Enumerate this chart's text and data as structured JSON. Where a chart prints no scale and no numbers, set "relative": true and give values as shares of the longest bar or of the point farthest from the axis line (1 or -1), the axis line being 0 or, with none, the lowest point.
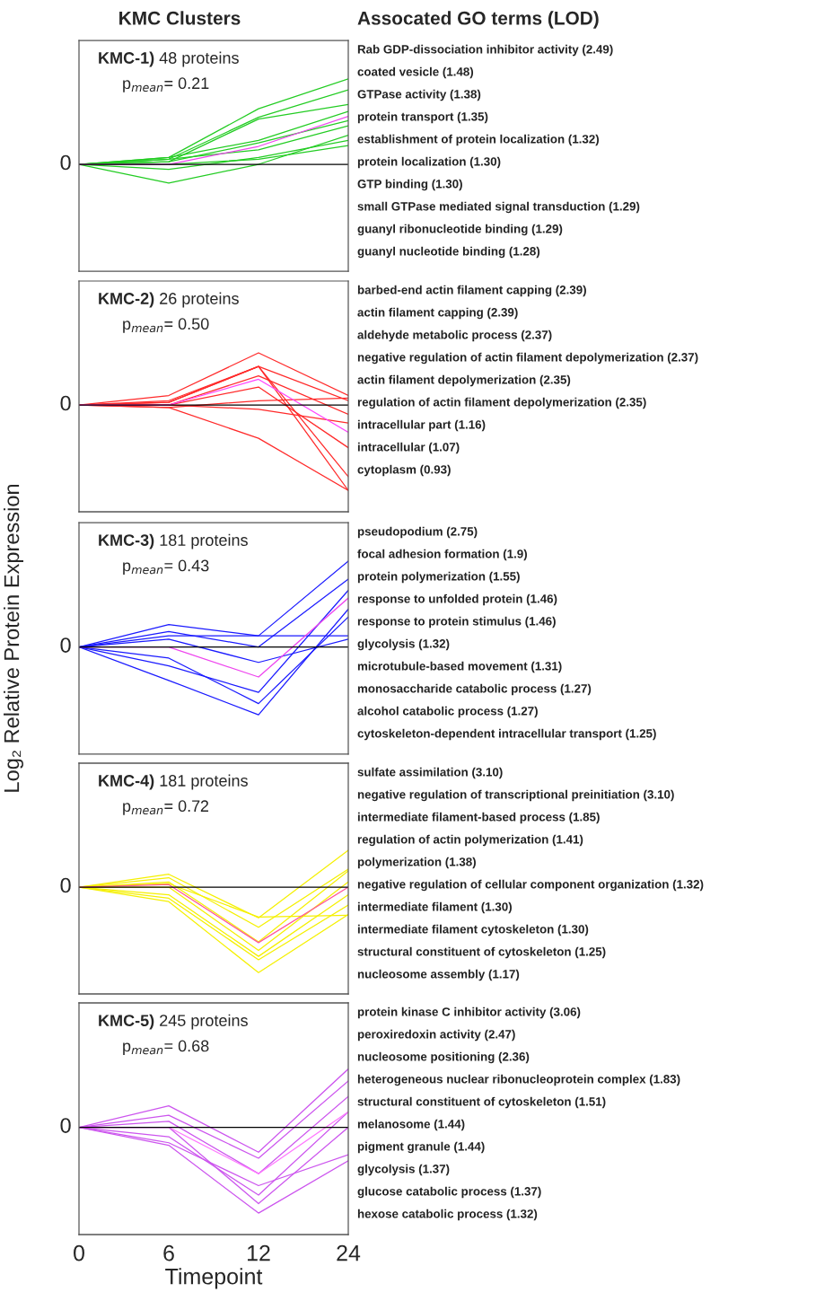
{
  "chart_data": [
    {
      "type": "line",
      "title": "KMC Clusters",
      "relative": true,
      "tick_labels": false,
      "categories": [
        "0",
        "6",
        "12",
        "24"
      ],
      "series": [
        {
          "color": "#22cc22",
          "values": [
            0,
            0.08,
            0.65,
            1
          ]
        },
        {
          "color": "#22cc22",
          "values": [
            0,
            0.06,
            0.55,
            0.87
          ]
        },
        {
          "color": "#22cc22",
          "values": [
            0,
            0.03,
            0.53,
            0.7
          ]
        },
        {
          "color": "#22cc22",
          "values": [
            0,
            -0.22,
            0,
            0.34
          ]
        },
        {
          "color": "#22cc22",
          "values": [
            0,
            0.03,
            0.25,
            0.51
          ]
        },
        {
          "color": "#22cc22",
          "values": [
            0,
            -0.06,
            0.08,
            0.28
          ]
        },
        {
          "color": "#22cc22",
          "values": [
            0,
            0.08,
            0.28,
            0.62
          ]
        },
        {
          "color": "#22cc22",
          "values": [
            0,
            0,
            0.06,
            0.22
          ]
        },
        {
          "color": "#22cc22",
          "values": [
            0,
            0.06,
            0.17,
            0.45
          ]
        },
        {
          "color": "#ee44ee",
          "values": [
            0,
            0,
            0.21,
            0.56
          ]
        }
      ],
      "ref_lines": [
        {
          "axis": "y",
          "value": 0,
          "label": "0",
          "color": "#000000"
        }
      ],
      "annotations": [
        "KMC-1)",
        "48 proteins",
        "p$_{mean}$= 0.21",
        "Assocated GO terms (LOD)",
        "Rab GDP-dissociation inhibitor activity (2.49)",
        "coated vesicle (1.48)",
        "GTPase activity (1.38)",
        "protein transport (1.35)",
        "establishment of protein localization (1.32)",
        "protein localization (1.30)",
        "GTP binding (1.30)",
        "small GTPase mediated signal transduction (1.29)",
        "guanyl ribonucleotide binding (1.29)",
        "guanyl nucleotide binding (1.28)"
      ]
    },
    {
      "type": "line",
      "relative": true,
      "tick_labels": false,
      "categories": [
        "0",
        "6",
        "12",
        "24"
      ],
      "series": [
        {
          "color": "#ff2a2a",
          "values": [
            0,
            0.11,
            0.61,
            0.11
          ]
        },
        {
          "color": "#ff2a2a",
          "values": [
            0,
            0.05,
            0.45,
            -1
          ]
        },
        {
          "color": "#ff2a2a",
          "values": [
            0,
            -0.03,
            -0.39,
            -1
          ]
        },
        {
          "color": "#ff2a2a",
          "values": [
            0,
            0.03,
            0.45,
            -0.84
          ]
        },
        {
          "color": "#ff2a2a",
          "values": [
            0,
            0,
            0.21,
            -0.5
          ]
        },
        {
          "color": "#ff2a2a",
          "values": [
            0,
            0,
            0.34,
            -0.11
          ]
        },
        {
          "color": "#ff2a2a",
          "values": [
            0,
            -0.03,
            0.05,
            0.08
          ]
        },
        {
          "color": "#ff2a2a",
          "values": [
            0,
            0.03,
            0.45,
            0.05
          ]
        },
        {
          "color": "#ff2a2a",
          "values": [
            0,
            0,
            -0.05,
            -0.21
          ]
        },
        {
          "color": "#ff44ff",
          "values": [
            0,
            0,
            0.3,
            -0.32
          ]
        }
      ],
      "ref_lines": [
        {
          "axis": "y",
          "value": 0,
          "label": "0",
          "color": "#000000"
        }
      ],
      "annotations": [
        "KMC-2)",
        "26 proteins",
        "p$_{mean}$= 0.50",
        "barbed-end actin filament capping (2.39)",
        "actin filament capping (2.39)",
        "aldehyde metabolic process (2.37)",
        "negative regulation of actin filament depolymerization (2.37)",
        "actin filament depolymerization (2.35)",
        "regulation of actin filament depolymerization (2.35)",
        "intracellular part (1.16)",
        "intracellular (1.07)",
        "cytoplasm (0.93)"
      ]
    },
    {
      "type": "line",
      "ylabel": "Log₂ Relative Protein Expression",
      "relative": true,
      "tick_labels": false,
      "categories": [
        "0",
        "6",
        "12",
        "24"
      ],
      "series": [
        {
          "color": "#1a1aff",
          "values": [
            0,
            0.26,
            0.13,
            1
          ]
        },
        {
          "color": "#1a1aff",
          "values": [
            0,
            -0.39,
            -0.79,
            0.44
          ]
        },
        {
          "color": "#1a1aff",
          "values": [
            0,
            0.13,
            0.13,
            0.13
          ]
        },
        {
          "color": "#1a1aff",
          "values": [
            0,
            -0.22,
            -0.53,
            0.66
          ]
        },
        {
          "color": "#1a1aff",
          "values": [
            0,
            0.09,
            -0.18,
            0.09
          ]
        },
        {
          "color": "#1a1aff",
          "values": [
            0,
            -0.13,
            -0.66,
            0.35
          ]
        },
        {
          "color": "#1a1aff",
          "values": [
            0,
            0.18,
            0,
            0.79
          ]
        },
        {
          "color": "#ee44ee",
          "values": [
            0,
            0,
            -0.35,
            0.57
          ]
        }
      ],
      "ref_lines": [
        {
          "axis": "y",
          "value": 0,
          "label": "0",
          "color": "#000000"
        }
      ],
      "annotations": [
        "KMC-3)",
        "181 proteins",
        "p$_{mean}$= 0.43",
        "pseudopodium (2.75)",
        "focal adhesion formation (1.9)",
        "protein polymerization (1.55)",
        "response to unfolded protein (1.46)",
        "response to protein stimulus (1.46)",
        "glycolysis (1.32)",
        "microtubule-based movement (1.31)",
        "monosaccharide catabolic process (1.27)",
        "alcohol catabolic process (1.27)",
        "cytoskeleton-dependent intracellular transport (1.25)"
      ]
    },
    {
      "type": "line",
      "relative": true,
      "tick_labels": false,
      "categories": [
        "0",
        "6",
        "12",
        "24"
      ],
      "series": [
        {
          "color": "#f5f000",
          "values": [
            0,
            0.15,
            -0.36,
            0.43
          ]
        },
        {
          "color": "#f5f000",
          "values": [
            0,
            -0.17,
            -1,
            -0.32
          ]
        },
        {
          "color": "#f5f000",
          "values": [
            0,
            0.06,
            -0.64,
            0.19
          ]
        },
        {
          "color": "#f5f000",
          "values": [
            0,
            -0.09,
            -0.81,
            -0.09
          ]
        },
        {
          "color": "#f5f000",
          "values": [
            0,
            0.11,
            -0.47,
            0.21
          ]
        },
        {
          "color": "#f5f000",
          "values": [
            0,
            0,
            -0.74,
            0.06
          ]
        },
        {
          "color": "#f5f000",
          "values": [
            0,
            -0.13,
            -0.85,
            -0.21
          ]
        },
        {
          "color": "#f5f000",
          "values": [
            0,
            0.04,
            -0.35,
            -0.33
          ]
        },
        {
          "color": "#ff5599",
          "values": [
            0,
            0.03,
            -0.65,
            0
          ]
        }
      ],
      "ref_lines": [
        {
          "axis": "y",
          "value": 0,
          "label": "0",
          "color": "#000000"
        }
      ],
      "annotations": [
        "KMC-4)",
        "181 proteins",
        "p$_{mean}$= 0.72",
        "sulfate assimilation (3.10)",
        "negative regulation of transcriptional preinitiation (3.10)",
        "intermediate filament-based process (1.85)",
        "regulation of actin polymerization (1.41)",
        "polymerization (1.38)",
        "negative regulation of cellular component organization (1.32)",
        "intermediate filament (1.30)",
        "intermediate filament cytoskeleton (1.30)",
        "structural constituent of cytoskeleton (1.25)",
        "nucleosome assembly (1.17)"
      ]
    },
    {
      "type": "line",
      "xlabel": "Timepoint",
      "relative": true,
      "tick_labels": "x",
      "categories": [
        "0",
        "6",
        "12",
        "24"
      ],
      "series": [
        {
          "color": "#cc55ee",
          "values": [
            0,
            0.25,
            -0.29,
            0.68
          ]
        },
        {
          "color": "#cc55ee",
          "values": [
            0,
            -0.21,
            -1,
            -0.39
          ]
        },
        {
          "color": "#cc55ee",
          "values": [
            0,
            0.14,
            -0.36,
            0.54
          ]
        },
        {
          "color": "#cc55ee",
          "values": [
            0,
            -0.11,
            -0.79,
            0.18
          ]
        },
        {
          "color": "#cc55ee",
          "values": [
            0,
            0.07,
            -0.54,
            0.36
          ]
        },
        {
          "color": "#cc55ee",
          "values": [
            0,
            -0.18,
            -0.68,
            -0.32
          ]
        },
        {
          "color": "#cc55ee",
          "values": [
            0,
            0,
            -0.89,
            0
          ]
        },
        {
          "color": "#ff77ff",
          "values": [
            0,
            0,
            -0.54,
            0.18
          ]
        }
      ],
      "ref_lines": [
        {
          "axis": "y",
          "value": 0,
          "label": "0",
          "color": "#000000"
        }
      ],
      "annotations": [
        "KMC-5)",
        "245 proteins",
        "p$_{mean}$= 0.68",
        "protein kinase C inhibitor activity (3.06)",
        "peroxiredoxin activity (2.47)",
        "nucleosome positioning (2.36)",
        "heterogeneous nuclear ribonucleoprotein complex (1.83)",
        "structural constituent of cytoskeleton (1.51)",
        "melanosome (1.44)",
        "pigment granule (1.44)",
        "glycolysis (1.37)",
        "glucose catabolic process (1.37)",
        "hexose catabolic process (1.32)"
      ]
    }
  ]
}
